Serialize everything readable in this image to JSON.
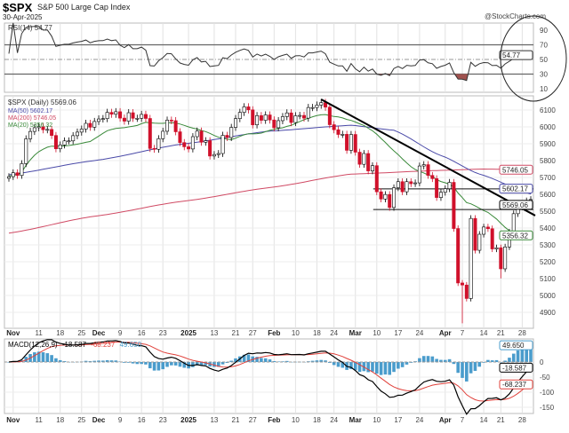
{
  "header": {
    "symbol": "$SPX",
    "name": "S&P 500 Large Cap Index",
    "date": "30-Apr-2025",
    "watermark": "@StockCharts.com"
  },
  "colors": {
    "up": "#ffffff",
    "down": "#d0102a",
    "ma20": "#3a8a3a",
    "ma50": "#4a4aa8",
    "ma200": "#d04a64",
    "macd": "#000000",
    "signal": "#e0403a",
    "histogram": "#4a9ccc",
    "rsi_oversold_fill": "#a0524f"
  },
  "chart_data": [
    {
      "type": "line",
      "panel": "rsi",
      "legend": "RSI(14) 54.77",
      "indicator": "RSI(14)",
      "last_value": "54.77",
      "y_ticks": [
        "90",
        "70",
        "50",
        "30",
        "10"
      ],
      "ylim": [
        5,
        95
      ],
      "levels": [
        70,
        50,
        30
      ]
    },
    {
      "type": "candlestick",
      "panel": "price",
      "legend": {
        "price": "$SPX (Daily) 5569.06",
        "ma50": "MA(50) 5602.17",
        "ma200": "MA(200) 5746.05",
        "ma20": "MA(20) 5356.32"
      },
      "last_labels": {
        "ma200": "5746.05",
        "ma50": "5602.17",
        "close": "5569.06",
        "ma20": "5356.32"
      },
      "y_ticks": [
        "6100",
        "6000",
        "5900",
        "5800",
        "5700",
        "5600",
        "5500",
        "5400",
        "5300",
        "5200",
        "5100",
        "5000",
        "4900"
      ],
      "x_ticks": [
        {
          "label": "Nov",
          "date": "2024-11-01",
          "bold": true
        },
        {
          "label": "11",
          "date": "2024-11-11"
        },
        {
          "label": "18",
          "date": "2024-11-18"
        },
        {
          "label": "25",
          "date": "2024-11-25"
        },
        {
          "label": "Dec",
          "date": "2024-12-02",
          "bold": true
        },
        {
          "label": "9",
          "date": "2024-12-09"
        },
        {
          "label": "16",
          "date": "2024-12-16"
        },
        {
          "label": "23",
          "date": "2024-12-23"
        },
        {
          "label": "2025",
          "date": "2025-01-02",
          "bold": true
        },
        {
          "label": "13",
          "date": "2025-01-13"
        },
        {
          "label": "21",
          "date": "2025-01-21"
        },
        {
          "label": "27",
          "date": "2025-01-27"
        },
        {
          "label": "Feb",
          "date": "2025-02-03",
          "bold": true
        },
        {
          "label": "10",
          "date": "2025-02-10"
        },
        {
          "label": "18",
          "date": "2025-02-18"
        },
        {
          "label": "24",
          "date": "2025-02-24"
        },
        {
          "label": "Mar",
          "date": "2025-03-03",
          "bold": true
        },
        {
          "label": "10",
          "date": "2025-03-10"
        },
        {
          "label": "17",
          "date": "2025-03-17"
        },
        {
          "label": "24",
          "date": "2025-03-24"
        },
        {
          "label": "Apr",
          "date": "2025-04-01",
          "bold": true
        },
        {
          "label": "7",
          "date": "2025-04-07"
        },
        {
          "label": "14",
          "date": "2025-04-14"
        },
        {
          "label": "21",
          "date": "2025-04-21"
        },
        {
          "label": "28",
          "date": "2025-04-28"
        }
      ],
      "dates": [
        "2024-10-31",
        "2024-11-01",
        "2024-11-04",
        "2024-11-05",
        "2024-11-06",
        "2024-11-07",
        "2024-11-08",
        "2024-11-11",
        "2024-11-12",
        "2024-11-13",
        "2024-11-14",
        "2024-11-15",
        "2024-11-18",
        "2024-11-19",
        "2024-11-20",
        "2024-11-21",
        "2024-11-22",
        "2024-11-25",
        "2024-11-26",
        "2024-11-27",
        "2024-11-29",
        "2024-12-02",
        "2024-12-03",
        "2024-12-04",
        "2024-12-05",
        "2024-12-06",
        "2024-12-09",
        "2024-12-10",
        "2024-12-11",
        "2024-12-12",
        "2024-12-13",
        "2024-12-16",
        "2024-12-17",
        "2024-12-18",
        "2024-12-19",
        "2024-12-20",
        "2024-12-23",
        "2024-12-24",
        "2024-12-26",
        "2024-12-27",
        "2024-12-30",
        "2024-12-31",
        "2025-01-02",
        "2025-01-03",
        "2025-01-06",
        "2025-01-07",
        "2025-01-08",
        "2025-01-10",
        "2025-01-13",
        "2025-01-14",
        "2025-01-15",
        "2025-01-16",
        "2025-01-17",
        "2025-01-21",
        "2025-01-22",
        "2025-01-23",
        "2025-01-24",
        "2025-01-27",
        "2025-01-28",
        "2025-01-29",
        "2025-01-30",
        "2025-01-31",
        "2025-02-03",
        "2025-02-04",
        "2025-02-05",
        "2025-02-06",
        "2025-02-07",
        "2025-02-10",
        "2025-02-11",
        "2025-02-12",
        "2025-02-13",
        "2025-02-14",
        "2025-02-18",
        "2025-02-19",
        "2025-02-20",
        "2025-02-21",
        "2025-02-24",
        "2025-02-25",
        "2025-02-26",
        "2025-02-27",
        "2025-02-28",
        "2025-03-03",
        "2025-03-04",
        "2025-03-05",
        "2025-03-06",
        "2025-03-07",
        "2025-03-10",
        "2025-03-11",
        "2025-03-12",
        "2025-03-13",
        "2025-03-14",
        "2025-03-17",
        "2025-03-18",
        "2025-03-19",
        "2025-03-20",
        "2025-03-21",
        "2025-03-24",
        "2025-03-25",
        "2025-03-26",
        "2025-03-27",
        "2025-03-28",
        "2025-03-31",
        "2025-04-01",
        "2025-04-02",
        "2025-04-03",
        "2025-04-04",
        "2025-04-07",
        "2025-04-08",
        "2025-04-09",
        "2025-04-10",
        "2025-04-11",
        "2025-04-14",
        "2025-04-15",
        "2025-04-16",
        "2025-04-17",
        "2025-04-21",
        "2025-04-22",
        "2025-04-23",
        "2025-04-24",
        "2025-04-25",
        "2025-04-28",
        "2025-04-29",
        "2025-04-30"
      ],
      "close": [
        5705,
        5728,
        5712,
        5782,
        5929,
        5973,
        5995,
        6001,
        5983,
        5985,
        5949,
        5870,
        5893,
        5917,
        5917,
        5948,
        5969,
        5987,
        6021,
        5998,
        6032,
        6047,
        6049,
        6086,
        6075,
        6090,
        6052,
        6034,
        6084,
        6051,
        6051,
        6074,
        6050,
        5872,
        5867,
        5930,
        5974,
        6040,
        6037,
        5971,
        5907,
        5882,
        5869,
        5942,
        5975,
        5909,
        5918,
        5827,
        5836,
        5842,
        5950,
        5937,
        5997,
        6049,
        6086,
        6119,
        6101,
        6012,
        6067,
        6039,
        6071,
        6041,
        5995,
        6037,
        6061,
        6083,
        6026,
        6066,
        6068,
        6052,
        6115,
        6115,
        6129,
        6144,
        6117,
        6013,
        5983,
        5955,
        5956,
        5861,
        5955,
        5850,
        5778,
        5842,
        5739,
        5770,
        5615,
        5572,
        5599,
        5522,
        5639,
        5675,
        5615,
        5675,
        5663,
        5668,
        5768,
        5776,
        5712,
        5693,
        5581,
        5612,
        5633,
        5671,
        5397,
        5074,
        5062,
        4982,
        5457,
        5268,
        5363,
        5406,
        5396,
        5276,
        5283,
        5158,
        5288,
        5376,
        5485,
        5525,
        5529,
        5561,
        5569.06
      ],
      "low_overrides": {
        "2025-04-07": 4835,
        "2025-04-21": 5101
      },
      "ma50": [
        [
          "2024-10-31",
          5716
        ],
        [
          "2024-11-29",
          5800
        ],
        [
          "2024-12-31",
          5900
        ],
        [
          "2025-01-31",
          5975
        ],
        [
          "2025-02-28",
          6010
        ],
        [
          "2025-03-14",
          5980
        ],
        [
          "2025-03-31",
          5830
        ],
        [
          "2025-04-11",
          5720
        ],
        [
          "2025-04-30",
          5602.17
        ]
      ],
      "ma200": [
        [
          "2024-10-31",
          5370
        ],
        [
          "2024-11-29",
          5470
        ],
        [
          "2024-12-31",
          5560
        ],
        [
          "2025-01-31",
          5640
        ],
        [
          "2025-02-28",
          5720
        ],
        [
          "2025-03-31",
          5742
        ],
        [
          "2025-04-14",
          5750
        ],
        [
          "2025-04-30",
          5746.05
        ]
      ],
      "trendline": [
        [
          "2025-02-19",
          6163
        ],
        [
          "2025-04-30",
          5474
        ]
      ],
      "support_lines": [
        {
          "from": "2025-03-10",
          "to": "2025-04-30",
          "value": 5632
        },
        {
          "from": "2025-03-10",
          "to": "2025-04-30",
          "value": 5510
        }
      ],
      "ylim": [
        4830,
        6190
      ]
    },
    {
      "type": "bar+line",
      "panel": "macd",
      "legend": {
        "name": "MACD(12,26,9)",
        "macd": "-18.587",
        "signal": "-68.237",
        "histogram": "49.650"
      },
      "y_ticks": [
        "0",
        "-50",
        "-100",
        "-150"
      ],
      "ylim": [
        -170,
        75
      ]
    }
  ]
}
